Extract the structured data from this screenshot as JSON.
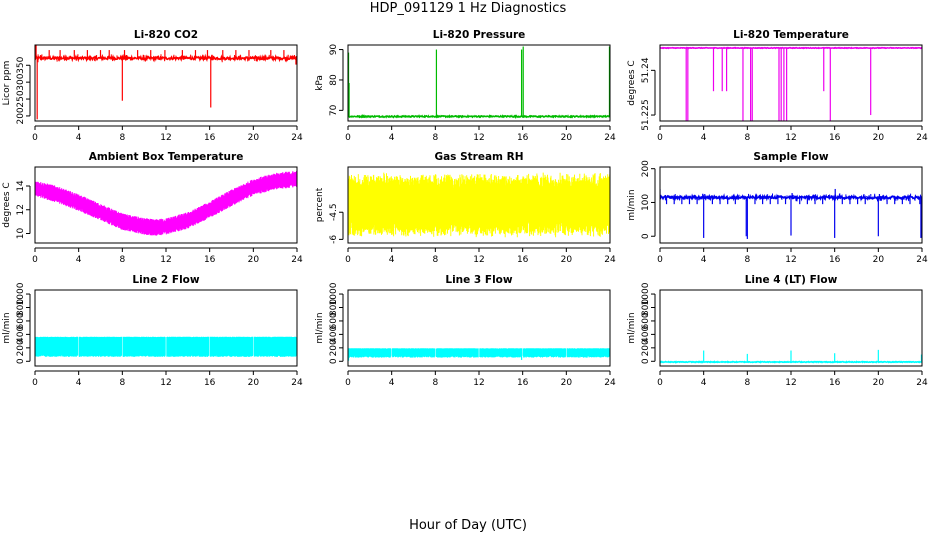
{
  "page": {
    "title": "HDP_091129  1 Hz Diagnostics",
    "xlabel": "Hour of Day (UTC)"
  },
  "chart_data": [
    {
      "type": "line",
      "title": "Li-820 CO2",
      "ylabel": "Licor ppm",
      "color": "#ff0000",
      "xlim": [
        0,
        24
      ],
      "ylim": [
        185,
        410
      ],
      "xticks": [
        0,
        4,
        8,
        12,
        16,
        20,
        24
      ],
      "yticks": [
        200,
        250,
        300,
        350
      ],
      "baseline": 371,
      "noise": 4,
      "base_density": 0.55,
      "spikes": [
        {
          "x": 0.1,
          "y": 410
        },
        {
          "x": 0.2,
          "y": 190
        },
        {
          "x": 1.3,
          "y": 395
        },
        {
          "x": 2.3,
          "y": 395
        },
        {
          "x": 3.6,
          "y": 395
        },
        {
          "x": 4.8,
          "y": 395
        },
        {
          "x": 6.0,
          "y": 395
        },
        {
          "x": 6.8,
          "y": 395
        },
        {
          "x": 8.0,
          "y": 245
        },
        {
          "x": 8.2,
          "y": 395
        },
        {
          "x": 9.4,
          "y": 395
        },
        {
          "x": 10.6,
          "y": 395
        },
        {
          "x": 11.9,
          "y": 395
        },
        {
          "x": 13.5,
          "y": 395
        },
        {
          "x": 14.7,
          "y": 395
        },
        {
          "x": 15.8,
          "y": 395
        },
        {
          "x": 16.1,
          "y": 225
        },
        {
          "x": 17.2,
          "y": 395
        },
        {
          "x": 18.4,
          "y": 395
        },
        {
          "x": 19.6,
          "y": 395
        },
        {
          "x": 21.6,
          "y": 395
        },
        {
          "x": 22.8,
          "y": 395
        },
        {
          "x": 23.9,
          "y": 352
        }
      ]
    },
    {
      "type": "line",
      "title": "Li-820 Pressure",
      "ylabel": "kPa",
      "color": "#00bb00",
      "xlim": [
        0,
        24
      ],
      "ylim": [
        66.5,
        91.5
      ],
      "xticks": [
        0,
        4,
        8,
        12,
        16,
        20,
        24
      ],
      "yticks": [
        70,
        80,
        90
      ],
      "baseline": 68,
      "noise": 0.2,
      "base_density": 0.35,
      "spikes": [
        {
          "x": 0.05,
          "y": 89
        },
        {
          "x": 0.1,
          "y": 79
        },
        {
          "x": 8.1,
          "y": 90
        },
        {
          "x": 15.9,
          "y": 90
        },
        {
          "x": 16.05,
          "y": 91
        },
        {
          "x": 23.95,
          "y": 91
        }
      ]
    },
    {
      "type": "line",
      "title": "Li-820 Temperature",
      "ylabel": "degrees C",
      "color": "#ee00ee",
      "xlim": [
        0,
        24
      ],
      "ylim": [
        51.223,
        51.2485
      ],
      "xticks": [
        0,
        4,
        8,
        12,
        16,
        20,
        24
      ],
      "yticks": [
        51.225,
        51.24
      ],
      "baseline": 51.2475,
      "noise": 0.0001,
      "base_density": 0.3,
      "spikes": [
        {
          "x": 2.4,
          "y": 51.223
        },
        {
          "x": 2.55,
          "y": 51.223
        },
        {
          "x": 4.9,
          "y": 51.233
        },
        {
          "x": 5.7,
          "y": 51.233
        },
        {
          "x": 6.1,
          "y": 51.233
        },
        {
          "x": 7.6,
          "y": 51.223
        },
        {
          "x": 8.3,
          "y": 51.223
        },
        {
          "x": 8.45,
          "y": 51.223
        },
        {
          "x": 10.9,
          "y": 51.223
        },
        {
          "x": 11.1,
          "y": 51.223
        },
        {
          "x": 11.35,
          "y": 51.223
        },
        {
          "x": 11.6,
          "y": 51.223
        },
        {
          "x": 15.0,
          "y": 51.233
        },
        {
          "x": 15.6,
          "y": 51.223
        },
        {
          "x": 19.3,
          "y": 51.225
        }
      ]
    },
    {
      "type": "line",
      "title": "Ambient Box Temperature",
      "ylabel": "degrees C",
      "color": "#ff00ff",
      "xlim": [
        0,
        24
      ],
      "ylim": [
        9.2,
        15.6
      ],
      "xticks": [
        0,
        4,
        8,
        12,
        16,
        20,
        24
      ],
      "yticks": [
        10,
        12,
        14
      ],
      "x": [
        0,
        2,
        4,
        6,
        8,
        10,
        11,
        12,
        14,
        16,
        18,
        20,
        22,
        24
      ],
      "y": [
        13.8,
        13.3,
        12.6,
        11.8,
        11.0,
        10.6,
        10.5,
        10.6,
        11.1,
        12.0,
        13.0,
        13.9,
        14.4,
        14.6
      ],
      "band": 0.7,
      "spikes": []
    },
    {
      "type": "line",
      "title": "Gas Stream RH",
      "ylabel": "percent",
      "color": "#ffff00",
      "xlim": [
        0,
        24
      ],
      "ylim": [
        -6.2,
        -2.0
      ],
      "xticks": [
        0,
        4,
        8,
        12,
        16,
        20,
        24
      ],
      "yticks": [
        -6.0,
        -4.5
      ],
      "baseline": -4.1,
      "band": 1.6,
      "spikes": []
    },
    {
      "type": "line",
      "title": "Sample Flow",
      "ylabel": "ml/min",
      "color": "#0000ee",
      "xlim": [
        0,
        24
      ],
      "ylim": [
        -20,
        205
      ],
      "xticks": [
        0,
        4,
        8,
        12,
        16,
        20,
        24
      ],
      "yticks": [
        0,
        100,
        200
      ],
      "baseline": 115,
      "noise": 4,
      "base_density": 0.6,
      "spikes": [
        {
          "x": 0.0,
          "y": 140
        },
        {
          "x": 0.6,
          "y": 95
        },
        {
          "x": 1.3,
          "y": 95
        },
        {
          "x": 2.0,
          "y": 95
        },
        {
          "x": 2.7,
          "y": 95
        },
        {
          "x": 3.4,
          "y": 95
        },
        {
          "x": 4.0,
          "y": -5
        },
        {
          "x": 4.1,
          "y": 125
        },
        {
          "x": 4.8,
          "y": 95
        },
        {
          "x": 5.5,
          "y": 95
        },
        {
          "x": 6.2,
          "y": 95
        },
        {
          "x": 6.9,
          "y": 95
        },
        {
          "x": 7.9,
          "y": 0
        },
        {
          "x": 8.0,
          "y": -8
        },
        {
          "x": 8.7,
          "y": 95
        },
        {
          "x": 9.4,
          "y": 95
        },
        {
          "x": 10.1,
          "y": 95
        },
        {
          "x": 10.8,
          "y": 95
        },
        {
          "x": 11.5,
          "y": 95
        },
        {
          "x": 12.0,
          "y": 2
        },
        {
          "x": 12.1,
          "y": 128
        },
        {
          "x": 12.8,
          "y": 95
        },
        {
          "x": 13.5,
          "y": 95
        },
        {
          "x": 14.2,
          "y": 95
        },
        {
          "x": 14.9,
          "y": 95
        },
        {
          "x": 16.0,
          "y": -5
        },
        {
          "x": 16.05,
          "y": 140
        },
        {
          "x": 16.7,
          "y": 95
        },
        {
          "x": 17.4,
          "y": 95
        },
        {
          "x": 18.1,
          "y": 95
        },
        {
          "x": 18.8,
          "y": 95
        },
        {
          "x": 20.0,
          "y": 0
        },
        {
          "x": 20.1,
          "y": 125
        },
        {
          "x": 20.8,
          "y": 95
        },
        {
          "x": 21.5,
          "y": 95
        },
        {
          "x": 22.2,
          "y": 95
        },
        {
          "x": 22.9,
          "y": 95
        },
        {
          "x": 23.9,
          "y": -5
        },
        {
          "x": 23.8,
          "y": 95
        }
      ]
    },
    {
      "type": "line",
      "title": "Line 2 Flow",
      "ylabel": "ml/min",
      "color": "#00ffff",
      "xlim": [
        0,
        24
      ],
      "ylim": [
        -70,
        1060
      ],
      "xticks": [
        0,
        4,
        8,
        12,
        16,
        20,
        24
      ],
      "yticks": [
        0,
        200,
        400,
        600,
        800,
        1000
      ],
      "band_low": 80,
      "band_high": 360,
      "gaps": [
        4,
        8,
        12,
        16,
        20
      ],
      "spikes": []
    },
    {
      "type": "line",
      "title": "Line 3 Flow",
      "ylabel": "ml/min",
      "color": "#00ffff",
      "xlim": [
        0,
        24
      ],
      "ylim": [
        -70,
        1060
      ],
      "xticks": [
        0,
        4,
        8,
        12,
        16,
        20,
        24
      ],
      "yticks": [
        0,
        200,
        400,
        600,
        800,
        1000
      ],
      "band_low": 70,
      "band_high": 190,
      "gaps": [
        4,
        8,
        12,
        16,
        20
      ],
      "spikes": [
        {
          "x": 0.05,
          "y": 10
        },
        {
          "x": 15.9,
          "y": 20
        }
      ]
    },
    {
      "type": "line",
      "title": "Line 4 (LT) Flow",
      "ylabel": "ml/min",
      "color": "#00ffff",
      "xlim": [
        0,
        24
      ],
      "ylim": [
        -70,
        1060
      ],
      "xticks": [
        0,
        4,
        8,
        12,
        16,
        20,
        24
      ],
      "yticks": [
        0,
        200,
        400,
        600,
        800,
        1000
      ],
      "baseline": -10,
      "noise": 6,
      "base_density": 0.5,
      "spikes": [
        {
          "x": 4.0,
          "y": 160
        },
        {
          "x": 8.0,
          "y": 110
        },
        {
          "x": 12.0,
          "y": 160
        },
        {
          "x": 16.0,
          "y": 120
        },
        {
          "x": 20.0,
          "y": 170
        },
        {
          "x": 23.95,
          "y": 100
        }
      ]
    }
  ]
}
